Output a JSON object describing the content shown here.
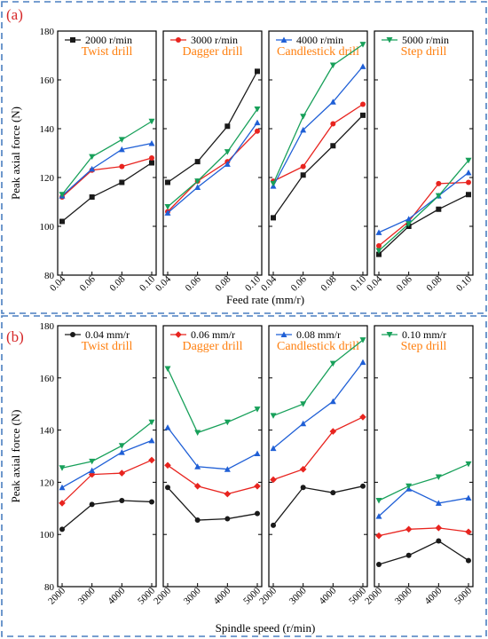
{
  "chart_data": [
    {
      "type": "line",
      "panel_label": "(a)",
      "xlabel": "Feed rate (mm/r)",
      "ylabel": "Peak axial force (N)",
      "x": [
        0.04,
        0.06,
        0.08,
        0.1
      ],
      "x_tick_labels": [
        "0.04",
        "0.06",
        "0.08",
        "0.10"
      ],
      "ylim": [
        80,
        180
      ],
      "y_ticks": [
        80,
        100,
        120,
        140,
        160,
        180
      ],
      "legend_placement": "top",
      "series_names": [
        "2000 r/min",
        "3000 r/min",
        "4000 r/min",
        "5000 r/min"
      ],
      "series_colors": [
        "#1a1a1a",
        "#e8241f",
        "#1f5fd6",
        "#18a05a"
      ],
      "series_markers": [
        "square",
        "circle",
        "triangle-up",
        "triangle-down"
      ],
      "panels": [
        {
          "title": "Twist drill",
          "series": [
            {
              "name": "2000 r/min",
              "values": [
                102,
                112,
                118,
                126
              ]
            },
            {
              "name": "3000 r/min",
              "values": [
                112,
                123,
                124.5,
                128
              ]
            },
            {
              "name": "4000 r/min",
              "values": [
                112.5,
                123.5,
                131.5,
                134
              ]
            },
            {
              "name": "5000 r/min",
              "values": [
                113,
                128.5,
                135.5,
                143
              ]
            }
          ]
        },
        {
          "title": "Dagger drill",
          "series": [
            {
              "name": "2000 r/min",
              "values": [
                118,
                126.5,
                141,
                163.5
              ]
            },
            {
              "name": "3000 r/min",
              "values": [
                106,
                118.5,
                126.5,
                139
              ]
            },
            {
              "name": "4000 r/min",
              "values": [
                105.5,
                116,
                125.5,
                142.5
              ]
            },
            {
              "name": "5000 r/min",
              "values": [
                108,
                118.5,
                130.5,
                148
              ]
            }
          ]
        },
        {
          "title": "Candlestick drill",
          "series": [
            {
              "name": "2000 r/min",
              "values": [
                103.5,
                121,
                133,
                145.5
              ]
            },
            {
              "name": "3000 r/min",
              "values": [
                118.5,
                124.5,
                142,
                150
              ]
            },
            {
              "name": "4000 r/min",
              "values": [
                116.5,
                139.5,
                151,
                165.5
              ]
            },
            {
              "name": "5000 r/min",
              "values": [
                117.5,
                145,
                166,
                174.5
              ]
            }
          ]
        },
        {
          "title": "Step drill",
          "series": [
            {
              "name": "2000 r/min",
              "values": [
                88.5,
                100,
                107,
                113
              ]
            },
            {
              "name": "3000 r/min",
              "values": [
                92,
                102,
                117.5,
                118
              ]
            },
            {
              "name": "4000 r/min",
              "values": [
                97.5,
                103,
                112.5,
                122
              ]
            },
            {
              "name": "5000 r/min",
              "values": [
                90,
                101,
                112.5,
                127
              ]
            }
          ]
        }
      ]
    },
    {
      "type": "line",
      "panel_label": "(b)",
      "xlabel": "Spindle speed (r/min)",
      "ylabel": "Peak axial force (N)",
      "x": [
        2000,
        3000,
        4000,
        5000
      ],
      "x_tick_labels": [
        "2000",
        "3000",
        "4000",
        "5000"
      ],
      "ylim": [
        80,
        180
      ],
      "y_ticks": [
        80,
        100,
        120,
        140,
        160,
        180
      ],
      "legend_placement": "top",
      "series_names": [
        "0.04 mm/r",
        "0.06 mm/r",
        "0.08 mm/r",
        "0.10 mm/r"
      ],
      "series_colors": [
        "#1a1a1a",
        "#e8241f",
        "#1f5fd6",
        "#18a05a"
      ],
      "series_markers": [
        "circle",
        "diamond",
        "triangle-up",
        "triangle-down"
      ],
      "panels": [
        {
          "title": "Twist drill",
          "series": [
            {
              "name": "0.04 mm/r",
              "values": [
                102,
                111.5,
                113,
                112.5
              ]
            },
            {
              "name": "0.06 mm/r",
              "values": [
                112,
                123,
                123.5,
                128.5
              ]
            },
            {
              "name": "0.08 mm/r",
              "values": [
                118,
                124.5,
                131.5,
                136
              ]
            },
            {
              "name": "0.10 mm/r",
              "values": [
                125.5,
                128,
                134,
                143
              ]
            }
          ]
        },
        {
          "title": "Dagger drill",
          "series": [
            {
              "name": "0.04 mm/r",
              "values": [
                118,
                105.5,
                106,
                108
              ]
            },
            {
              "name": "0.06 mm/r",
              "values": [
                126.5,
                118.5,
                115.5,
                118.5
              ]
            },
            {
              "name": "0.08 mm/r",
              "values": [
                141,
                126,
                125,
                131
              ]
            },
            {
              "name": "0.10 mm/r",
              "values": [
                163.5,
                139,
                143,
                148
              ]
            }
          ]
        },
        {
          "title": "Candlestick drill",
          "series": [
            {
              "name": "0.04 mm/r",
              "values": [
                103.5,
                118,
                116,
                118.5
              ]
            },
            {
              "name": "0.06 mm/r",
              "values": [
                121,
                125,
                139.5,
                145
              ]
            },
            {
              "name": "0.08 mm/r",
              "values": [
                133,
                142.5,
                151,
                166
              ]
            },
            {
              "name": "0.10 mm/r",
              "values": [
                145.5,
                150,
                165.5,
                174.5
              ]
            }
          ]
        },
        {
          "title": "Step drill",
          "series": [
            {
              "name": "0.04 mm/r",
              "values": [
                88.5,
                92,
                97.5,
                90
              ]
            },
            {
              "name": "0.06 mm/r",
              "values": [
                99.5,
                102,
                102.5,
                101
              ]
            },
            {
              "name": "0.08 mm/r",
              "values": [
                107,
                117.5,
                112,
                114
              ]
            },
            {
              "name": "0.10 mm/r",
              "values": [
                113,
                118.5,
                122,
                127
              ]
            }
          ]
        }
      ]
    }
  ]
}
